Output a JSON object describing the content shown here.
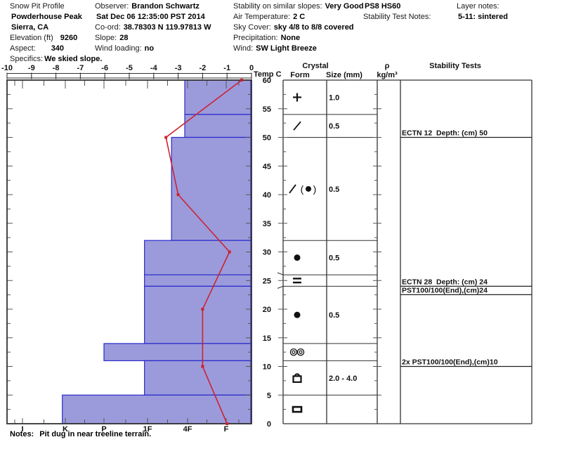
{
  "header": {
    "title": "Snow Pit Profile",
    "location_name": "Powderhouse Peak",
    "region": "Sierra, CA",
    "elevation_label": "Elevation (ft)",
    "elevation_value": "9260",
    "aspect_label": "Aspect:",
    "aspect_value": "340",
    "specifics_label": "Specifics:",
    "specifics_value": "We skied slope.",
    "observer_label": "Observer:",
    "observer_value": "Brandon Schwartz",
    "datetime": "Sat Dec 06 12:35:00 PST 2014",
    "coord_label": "Co-ord:",
    "coord_value": "38.78303 N 119.97813 W",
    "slope_label": "Slope:",
    "slope_value": "28",
    "wind_loading_label": "Wind loading:",
    "wind_loading_value": "no",
    "stability_slopes_label": "Stability on similar slopes:",
    "stability_slopes_value": "Very Good",
    "air_temp_label": "Air Temperature:",
    "air_temp_value": "2 C",
    "sky_label": "Sky Cover:",
    "sky_value": "sky 4/8 to 8/8 covered",
    "precip_label": "Precipitation:",
    "precip_value": "None",
    "wind_label": "Wind:",
    "wind_value": "SW Light Breeze",
    "pit_code": "PS8 HS60",
    "test_notes_label": "Stability Test Notes:",
    "layer_notes_label": "Layer notes:",
    "layer_notes_value": "5-11: sintered"
  },
  "notes_label": "Notes:",
  "notes_value": "Pit dug in near treeline terrain.",
  "chart_data": {
    "type": "bar",
    "subtype": "snow-pit-profile",
    "depth_axis": {
      "unit": "cm",
      "min": 0,
      "max": 60,
      "tick_labels": [
        60,
        55,
        50,
        45,
        40,
        35,
        30,
        25,
        20,
        15,
        10,
        5,
        0
      ]
    },
    "temp_axis": {
      "title": "Temp C",
      "min": -10,
      "max": 0,
      "ticks": [
        -10,
        -9,
        -8,
        -7,
        -6,
        -5,
        -4,
        -3,
        -2,
        -1,
        0
      ]
    },
    "hardness_axis": {
      "categories": [
        "I",
        "K",
        "P",
        "1F",
        "4F",
        "F"
      ]
    },
    "column_headers": {
      "crystal": "Crystal",
      "form": "Form",
      "size": "Size (mm)",
      "density_top": "ρ",
      "density_bottom": "kg/m³",
      "stability": "Stability Tests"
    },
    "layers": [
      {
        "top_cm": 60,
        "bottom_cm": 54,
        "hardness": "4F",
        "hardness_value": 2.07,
        "grain_form": "precipitation-particles",
        "glyph": "plus",
        "grain_size_mm": "1.0",
        "thin": false
      },
      {
        "top_cm": 54,
        "bottom_cm": 50,
        "hardness": "4F",
        "hardness_value": 2.07,
        "grain_form": "decomposing-fragments",
        "glyph": "slash",
        "grain_size_mm": "0.5",
        "thin": false
      },
      {
        "top_cm": 50,
        "bottom_cm": 32,
        "hardness": "4F-1F",
        "hardness_value": 2.4,
        "grain_form": "decomposing-fragments-rounding",
        "glyph": "slash-paren-dot",
        "grain_size_mm": "0.5",
        "thin": false
      },
      {
        "top_cm": 32,
        "bottom_cm": 26,
        "hardness": "1F",
        "hardness_value": 3.07,
        "grain_form": "rounded-grains",
        "glyph": "dot",
        "grain_size_mm": "0.5",
        "thin": false
      },
      {
        "top_cm": 26,
        "bottom_cm": 24,
        "hardness": "1F",
        "hardness_value": 3.07,
        "grain_form": "ice-layer",
        "glyph": "double-bar",
        "grain_size_mm": "",
        "thin": true
      },
      {
        "top_cm": 24,
        "bottom_cm": 14,
        "hardness": "1F",
        "hardness_value": 3.07,
        "grain_form": "rounded-grains",
        "glyph": "dot",
        "grain_size_mm": "0.5",
        "thin": false
      },
      {
        "top_cm": 14,
        "bottom_cm": 11,
        "hardness": "P",
        "hardness_value": 4.0,
        "grain_form": "melt-freeze-clusters",
        "glyph": "double-circle",
        "grain_size_mm": "",
        "thin": false
      },
      {
        "top_cm": 11,
        "bottom_cm": 5,
        "hardness": "1F",
        "hardness_value": 3.07,
        "grain_form": "faceted-crystals",
        "glyph": "padlock",
        "grain_size_mm": "2.0 - 4.0",
        "thin": false
      },
      {
        "top_cm": 5,
        "bottom_cm": 0,
        "hardness": "K",
        "hardness_value": 5.07,
        "grain_form": "ice-formation",
        "glyph": "bar",
        "grain_size_mm": "",
        "thin": false
      }
    ],
    "temperature_profile": [
      {
        "depth_cm": 60,
        "temp_c": -0.4
      },
      {
        "depth_cm": 50,
        "temp_c": -3.5
      },
      {
        "depth_cm": 40,
        "temp_c": -3.0
      },
      {
        "depth_cm": 30,
        "temp_c": -0.9
      },
      {
        "depth_cm": 20,
        "temp_c": -2.0
      },
      {
        "depth_cm": 10,
        "temp_c": -2.0
      },
      {
        "depth_cm": 0,
        "temp_c": -1.0
      }
    ],
    "stability_tests": [
      {
        "label": "ECTN 12  Depth: (cm) 50",
        "depth_cm": 50,
        "row": 0
      },
      {
        "label": "ECTN 28  Depth: (cm) 24",
        "depth_cm": 24,
        "row": 0
      },
      {
        "label": "PST100/100(End),(cm)24",
        "depth_cm": 24,
        "row": 1
      },
      {
        "label": "2x PST100/100(End),(cm)10",
        "depth_cm": 10,
        "row": 0
      }
    ],
    "colors": {
      "bar_fill": "#9b9bdb",
      "bar_border": "#2a2acc",
      "temp_line": "#cc2233",
      "grid": "#333333"
    }
  }
}
